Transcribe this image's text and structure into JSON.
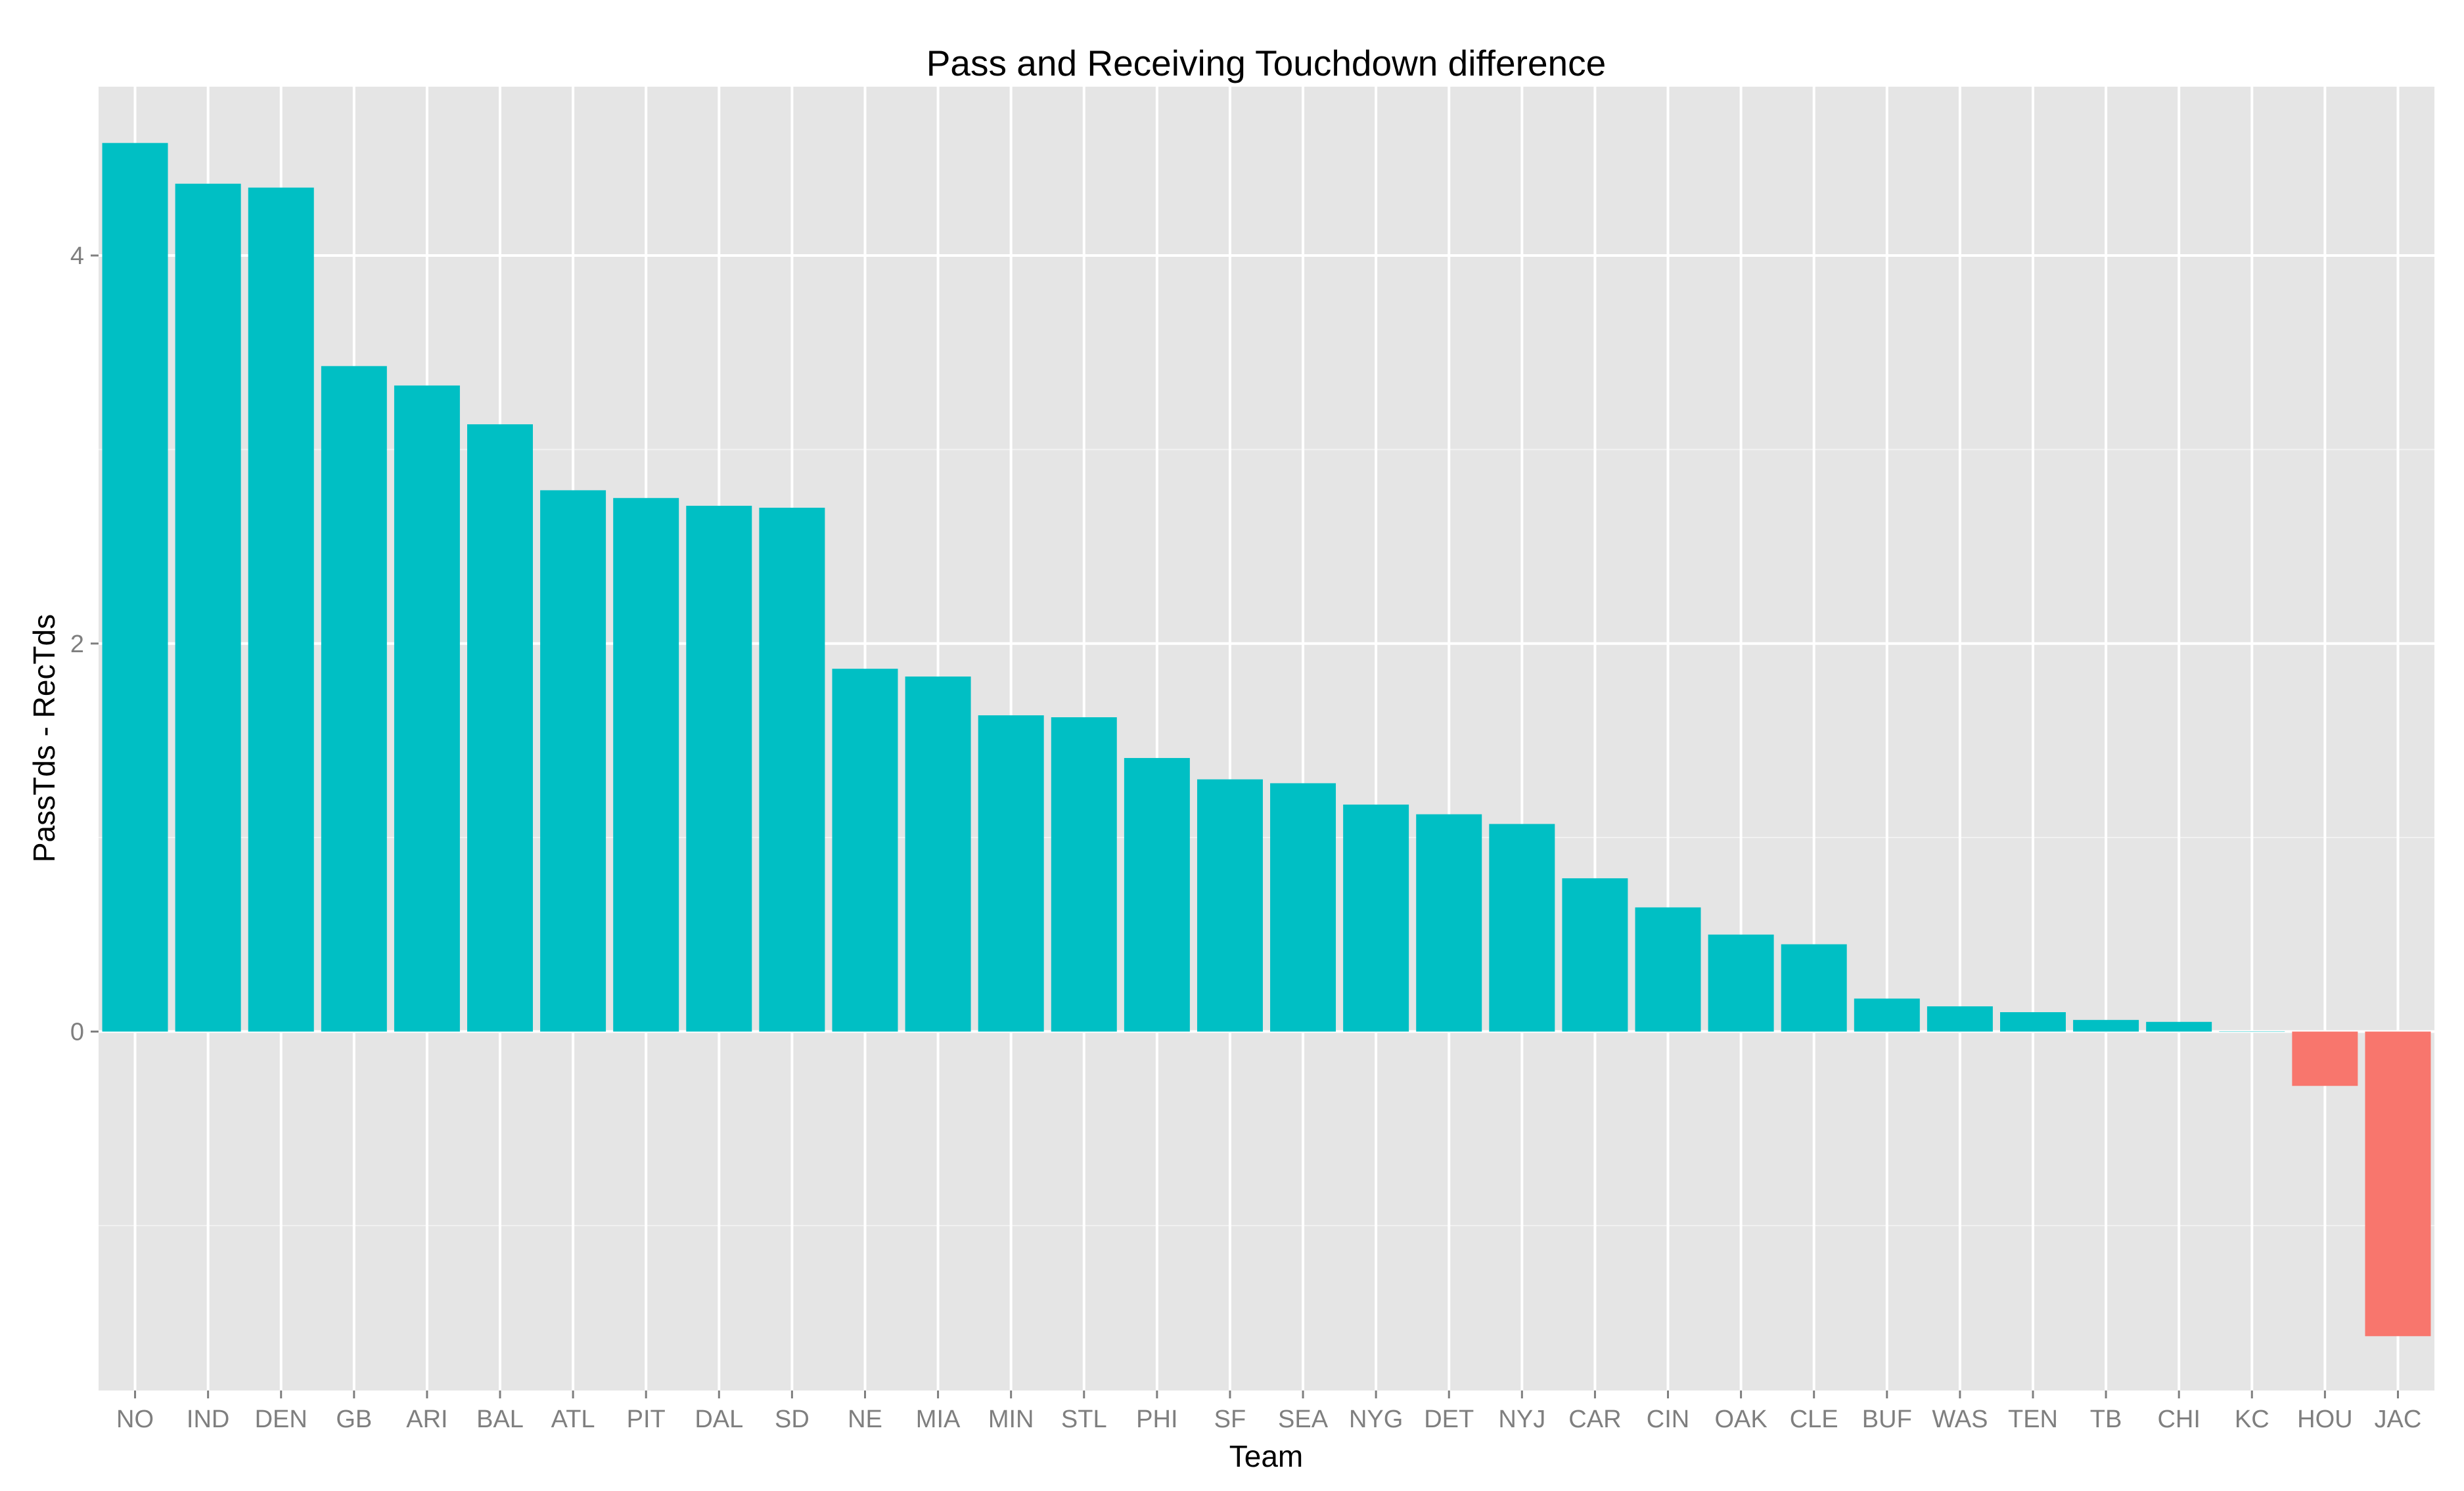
{
  "chart_data": {
    "type": "bar",
    "title": "Pass and Receiving Touchdown difference",
    "xlabel": "Team",
    "ylabel": "PassTds - RecTds",
    "categories": [
      "NO",
      "IND",
      "DEN",
      "GB",
      "ARI",
      "BAL",
      "ATL",
      "PIT",
      "DAL",
      "SD",
      "NE",
      "MIA",
      "MIN",
      "STL",
      "PHI",
      "SF",
      "SEA",
      "NYG",
      "DET",
      "NYJ",
      "CAR",
      "CIN",
      "OAK",
      "CLE",
      "BUF",
      "WAS",
      "TEN",
      "TB",
      "CHI",
      "KC",
      "HOU",
      "JAC"
    ],
    "values": [
      4.58,
      4.37,
      4.35,
      3.43,
      3.33,
      3.13,
      2.79,
      2.75,
      2.71,
      2.7,
      1.87,
      1.83,
      1.63,
      1.62,
      1.41,
      1.3,
      1.28,
      1.17,
      1.12,
      1.07,
      0.79,
      0.64,
      0.5,
      0.45,
      0.17,
      0.13,
      0.1,
      0.06,
      0.05,
      0.0,
      -0.28,
      -1.57
    ],
    "yticks": [
      0,
      2,
      4
    ],
    "ylim": [
      -1.85,
      4.87
    ],
    "grid": true,
    "colors": {
      "positive": "#00BFC4",
      "negative": "#F8766D",
      "panel": "#E5E5E5",
      "grid": "#FFFFFF"
    }
  }
}
